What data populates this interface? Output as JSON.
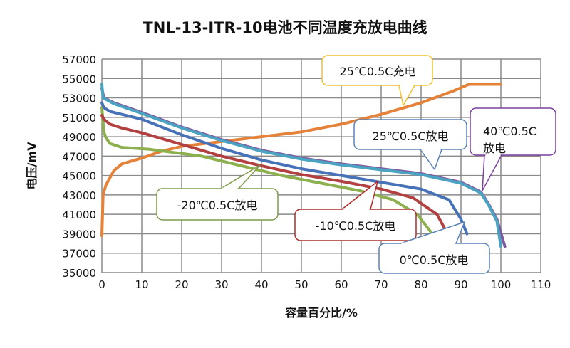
{
  "chart_data": {
    "type": "line",
    "title": "TNL-13-ITR-10电池不同温度充放电曲线",
    "xlabel": "容量百分比/%",
    "ylabel": "电压/mV",
    "xlim": [
      0,
      110
    ],
    "ylim": [
      35000,
      57000
    ],
    "xticks": [
      0,
      10,
      20,
      30,
      40,
      50,
      60,
      70,
      80,
      90,
      100,
      110
    ],
    "yticks": [
      35000,
      37000,
      39000,
      41000,
      43000,
      45000,
      47000,
      49000,
      51000,
      53000,
      55000,
      57000
    ],
    "grid": true,
    "series": [
      {
        "name": "25℃0.5C充电",
        "color": "#e5823a",
        "x": [
          0,
          0.3,
          1,
          3,
          5,
          10,
          15,
          20,
          30,
          40,
          50,
          60,
          70,
          80,
          88,
          92,
          100
        ],
        "y": [
          38800,
          43000,
          44000,
          45500,
          46200,
          46800,
          47500,
          48000,
          48500,
          49000,
          49500,
          50300,
          51300,
          52500,
          53700,
          54400,
          54400
        ]
      },
      {
        "name": "-20℃0.5C放电",
        "color": "#8cb04d",
        "x": [
          0,
          0.5,
          1,
          2,
          5,
          12,
          25,
          35,
          45,
          55,
          65,
          73,
          79,
          83
        ],
        "y": [
          52000,
          49500,
          48900,
          48300,
          47900,
          47700,
          47000,
          46000,
          45000,
          44200,
          43400,
          42500,
          41000,
          38900
        ]
      },
      {
        "name": "-10℃0.5C放电",
        "color": "#b34040",
        "x": [
          0,
          0.5,
          2,
          5,
          10,
          20,
          30,
          40,
          50,
          60,
          70,
          78,
          84,
          87
        ],
        "y": [
          51200,
          50800,
          50300,
          49900,
          49400,
          48200,
          47000,
          46000,
          45100,
          44400,
          43600,
          42700,
          41000,
          38700
        ]
      },
      {
        "name": "0℃0.5C放电",
        "color": "#4872b8",
        "x": [
          0,
          0.5,
          2,
          5,
          10,
          20,
          30,
          40,
          50,
          60,
          70,
          80,
          87,
          90,
          91.5
        ],
        "y": [
          52500,
          52000,
          51600,
          51300,
          50800,
          49200,
          47800,
          46600,
          45700,
          45000,
          44300,
          43600,
          42500,
          40500,
          39000
        ]
      },
      {
        "name": "40℃0.5C放电",
        "color": "#7f5aa0",
        "x": [
          0,
          0.5,
          3,
          10,
          20,
          30,
          40,
          50,
          60,
          70,
          80,
          90,
          95,
          97,
          99,
          101
        ],
        "y": [
          54000,
          53000,
          52500,
          51500,
          50000,
          48700,
          47600,
          46800,
          46200,
          45700,
          45200,
          44300,
          43300,
          42000,
          40500,
          37700
        ]
      },
      {
        "name": "25℃0.5C放电",
        "color": "#4aa3c0",
        "x": [
          0,
          0.3,
          3,
          10,
          20,
          30,
          40,
          50,
          60,
          70,
          80,
          90,
          95,
          97,
          99,
          100
        ],
        "y": [
          54400,
          53000,
          52400,
          51400,
          49900,
          48600,
          47500,
          46700,
          46100,
          45600,
          45100,
          44200,
          43200,
          41900,
          40300,
          37700
        ]
      }
    ],
    "annotations": [
      {
        "text": "25℃0.5C充电",
        "color": "#f2c230"
      },
      {
        "text": "25℃0.5C放电",
        "color": "#5a82b8"
      },
      {
        "text1": "40℃0.5C",
        "text2": "放电",
        "color": "#7a3fa0"
      },
      {
        "text": "-20℃0.5C放电",
        "color": "#7f9a4a"
      },
      {
        "text": "-10℃0.5C放电",
        "color": "#b02a2a"
      },
      {
        "text": "0℃0.5C放电",
        "color": "#5a82b8"
      }
    ]
  }
}
